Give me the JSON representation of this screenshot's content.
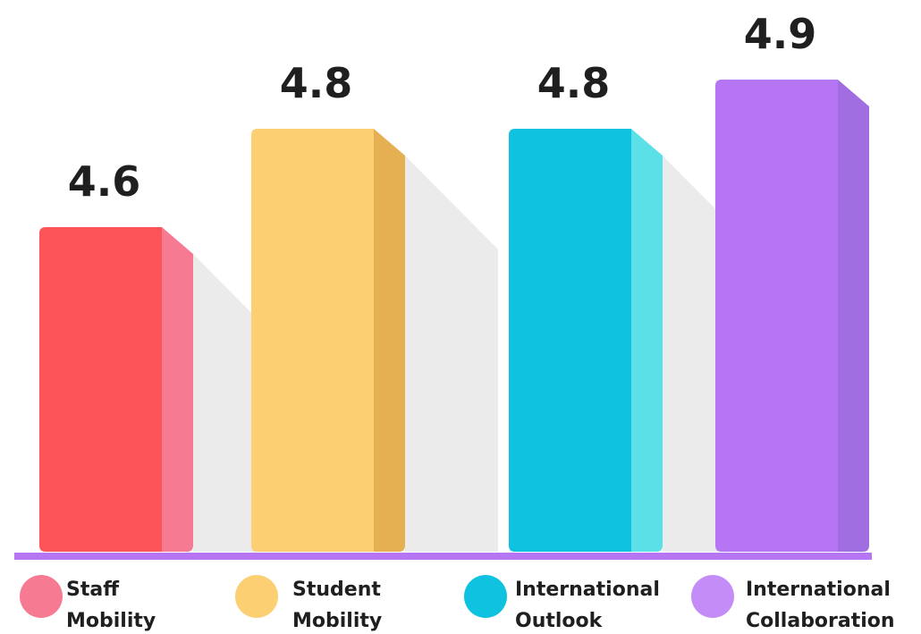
{
  "chart_data": {
    "type": "bar",
    "title": "",
    "xlabel": "",
    "ylabel": "",
    "categories": [
      "Staff Mobility",
      "Student Mobility",
      "International Outlook",
      "International Collaboration"
    ],
    "values": [
      4.6,
      4.8,
      4.8,
      4.9
    ],
    "value_labels": [
      "4.6",
      "4.8",
      "4.8",
      "4.9"
    ],
    "legend": [
      {
        "line1": "Staff",
        "line2": "Mobility"
      },
      {
        "line1": "Student",
        "line2": "Mobility"
      },
      {
        "line1": "International",
        "line2": "Outlook"
      },
      {
        "line1": "International",
        "line2": "Collaboration"
      }
    ],
    "legend_placement": "bottom",
    "grid": false,
    "colors": {
      "bars": [
        "#fd5459",
        "#fcd072",
        "#0fc2e0",
        "#b676f4"
      ],
      "bar_sides": [
        "#f77a93",
        "#e4b052",
        "#5ce0e7",
        "#a06ee0"
      ],
      "legend_dots": [
        "#f77a93",
        "#fcd072",
        "#0fc2e0",
        "#c48cf7"
      ],
      "baseline": "#b676f4",
      "shadow": "#ebebeb"
    }
  }
}
